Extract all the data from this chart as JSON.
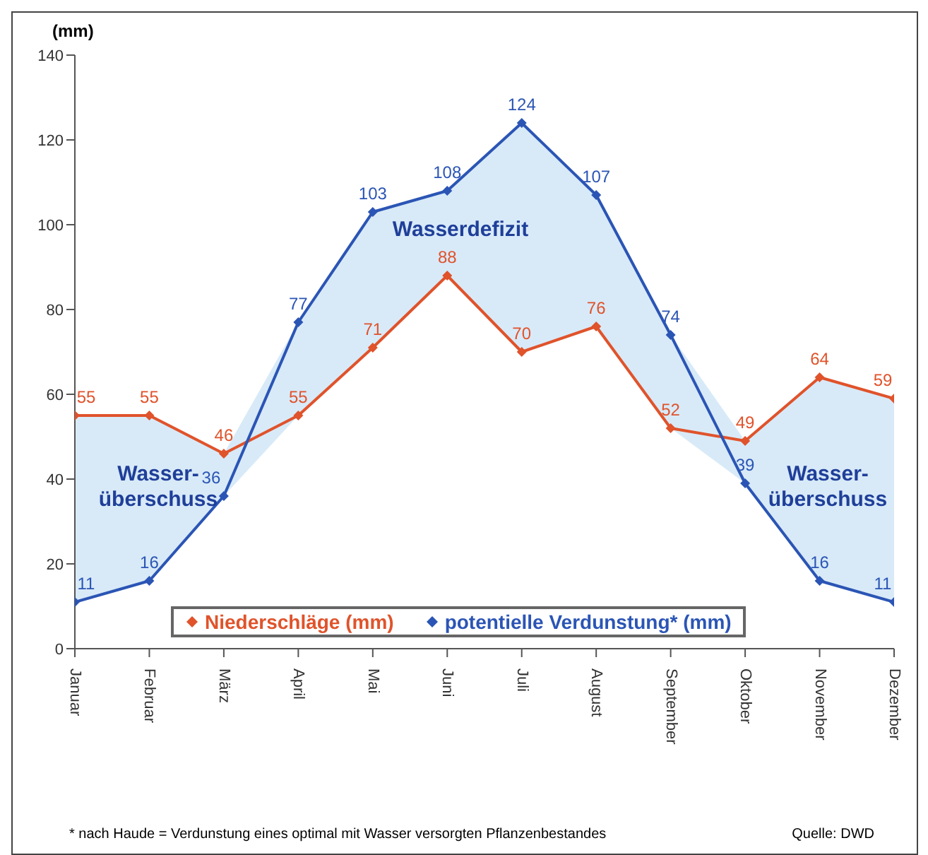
{
  "chart_data": {
    "type": "line",
    "ylabel": "(mm)",
    "categories": [
      "Januar",
      "Februar",
      "März",
      "April",
      "Mai",
      "Juni",
      "Juli",
      "August",
      "September",
      "Oktober",
      "November",
      "Dezember"
    ],
    "series": [
      {
        "name": "Niederschläge (mm)",
        "color": "#e0532b",
        "values": [
          55,
          55,
          46,
          55,
          71,
          88,
          70,
          76,
          52,
          49,
          64,
          59
        ]
      },
      {
        "name": "potentielle Verdunstung* (mm)",
        "color": "#2b55b5",
        "values": [
          11,
          16,
          36,
          77,
          103,
          108,
          124,
          107,
          74,
          39,
          16,
          11
        ],
        "lower": [
          11,
          16,
          36,
          55,
          71,
          88,
          70,
          76,
          52,
          39,
          16,
          11
        ],
        "upper": [
          55,
          55,
          46,
          77,
          103,
          108,
          124,
          107,
          74,
          49,
          64,
          59
        ]
      }
    ],
    "ylim": [
      0,
      140
    ],
    "yticks": [
      0,
      20,
      40,
      60,
      80,
      100,
      120,
      140
    ],
    "grid": false,
    "legend": "bottom",
    "marker": "diamond",
    "line_style": "solid",
    "data_labels": true,
    "annotations": [
      "Wasserdefizit",
      "Wasser-\nüberschuss",
      "Wasser-\nüberschuss",
      "* nach Haude = Verdunstung eines optimal mit Wasser versorgten Pflanzenbestandes",
      "Quelle: DWD"
    ]
  }
}
